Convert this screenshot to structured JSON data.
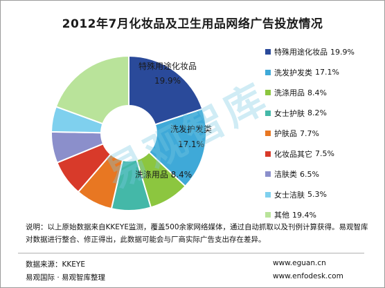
{
  "title": "2012年7月化妆品及卫生用品网络广告投放情况",
  "chart_data": {
    "type": "pie",
    "variant": "donut",
    "title": "2012年7月化妆品及卫生用品网络广告投放情况",
    "unit": "%",
    "categories": [
      "特殊用途化妆品",
      "洗发护发类",
      "洗涤用品",
      "女士护肤",
      "护肤品",
      "化妆品其它",
      "洁肤类",
      "女士洁肤",
      "其他"
    ],
    "values": [
      19.9,
      17.1,
      8.4,
      8.2,
      7.7,
      7.5,
      6.5,
      5.3,
      19.4
    ],
    "value_labels": [
      "19.9%",
      "17.1%",
      "8.4%",
      "8.2%",
      "7.7%",
      "7.5%",
      "6.5%",
      "5.3%",
      "19.4%"
    ],
    "colors": [
      "#2a4a9a",
      "#3fa9d8",
      "#8cc63f",
      "#44b8a8",
      "#e87722",
      "#d83a2a",
      "#8b8fcb",
      "#7fd0ee",
      "#b9e39a"
    ],
    "legend_position": "right",
    "slice_labels_shown_for": [
      "特殊用途化妆品",
      "洗发护发类",
      "洗涤用品"
    ]
  },
  "slice_labels": [
    {
      "name": "特殊用途化妆品",
      "value": "19.9%"
    },
    {
      "name": "洗发护发类",
      "value": "17.1%"
    },
    {
      "name": "洗涤用品",
      "value": "8.4%"
    }
  ],
  "note": "说明：以上原始数据来自KKEYE监测，覆盖500余家网络媒体，通过自动抓取以及刊例计算获得。易观智库对数据进行整合、修正得出，此数据可能会与厂商实际广告支出存在差异。",
  "footer": {
    "source": "数据来源：KKEYE",
    "compiler": "易观国际 · 易观智库整理",
    "url1": "www.eguan.cn",
    "url2": "www.enfodesk.com"
  },
  "watermark": "易观智库"
}
